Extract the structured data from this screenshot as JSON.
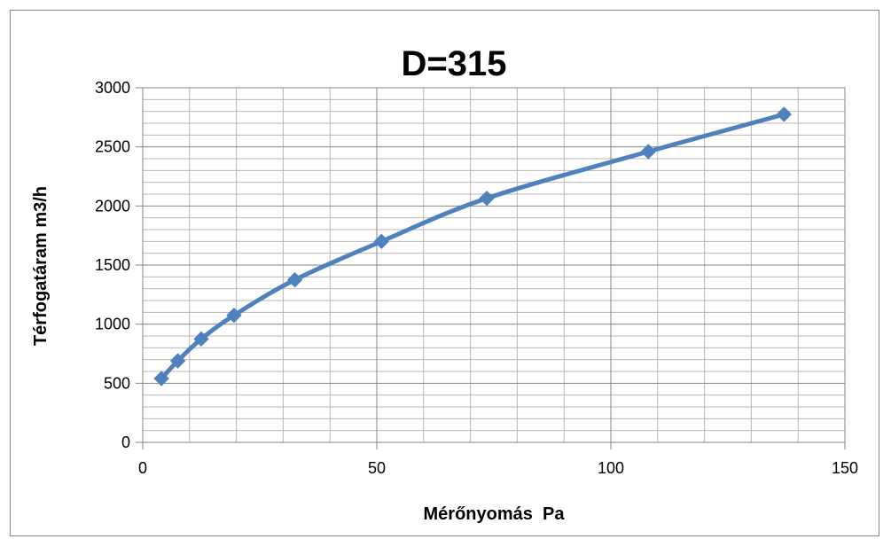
{
  "chart_data": {
    "type": "line",
    "title": "D=315",
    "xlabel": "Mérőnyomás  Pa",
    "ylabel": "Térfogatáram m3/h",
    "xlim": [
      0,
      150
    ],
    "ylim": [
      0,
      3000
    ],
    "x_ticks": [
      "0",
      "50",
      "100",
      "150"
    ],
    "y_ticks": [
      "0",
      "500",
      "1000",
      "1500",
      "2000",
      "2500",
      "3000"
    ],
    "x_minor_step": 10,
    "y_minor_step": 100,
    "grid": true,
    "series_color": "#4F81BD",
    "series": [
      {
        "x": [
          4,
          7.5,
          12.5,
          19.5,
          32.5,
          51,
          73.5,
          108,
          137
        ],
        "values": [
          540,
          690,
          875,
          1075,
          1375,
          1700,
          2065,
          2460,
          2775
        ]
      }
    ]
  }
}
